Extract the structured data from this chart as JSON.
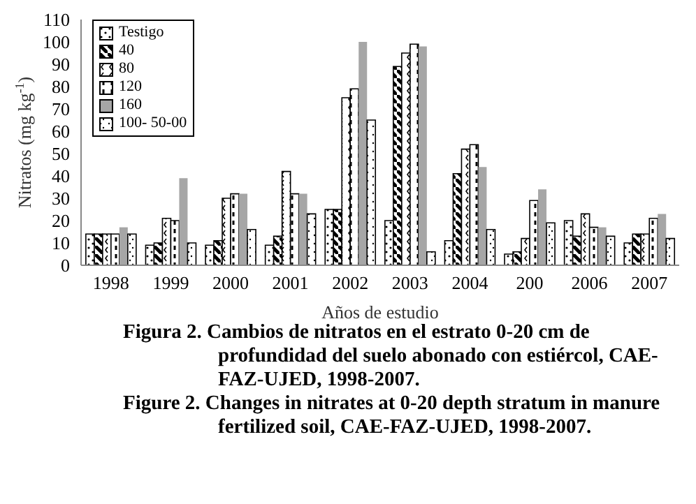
{
  "chart_data": {
    "type": "bar",
    "categories": [
      "1998",
      "1999",
      "2000",
      "2001",
      "2002",
      "2003",
      "2004",
      "200",
      "2006",
      "2007"
    ],
    "xlabel": "Años de estudio",
    "ylabel": "Nitratos (mg kg$^{-1}$)",
    "ylim": [
      0,
      110
    ],
    "yticks": [
      0,
      10,
      20,
      30,
      40,
      50,
      60,
      70,
      80,
      90,
      100,
      110
    ],
    "grid": false,
    "legend": "top left",
    "series": [
      {
        "name": "Testigo",
        "color": "#000000",
        "values": [
          14,
          9,
          9,
          9,
          25,
          20,
          11,
          5,
          20,
          10
        ]
      },
      {
        "name": "40",
        "color": "#000000",
        "values": [
          14,
          10,
          11,
          13,
          25,
          89,
          41,
          6,
          13,
          14
        ]
      },
      {
        "name": "80",
        "color": "#000000",
        "values": [
          14,
          21,
          30,
          42,
          75,
          95,
          52,
          12,
          23,
          14
        ]
      },
      {
        "name": "120",
        "color": "#000000",
        "values": [
          14,
          20,
          32,
          32,
          79,
          99,
          54,
          29,
          17,
          21
        ]
      },
      {
        "name": "160",
        "color": "#a6a6a6",
        "values": [
          17,
          39,
          32,
          32,
          100,
          98,
          44,
          34,
          17,
          23
        ]
      },
      {
        "name": "100- 50-00",
        "color": "#000000",
        "values": [
          14,
          10,
          16,
          23,
          65,
          6,
          16,
          19,
          13,
          12
        ]
      }
    ],
    "annotations": [
      "Figura 2. Cambios de nitratos en el estrato 0-20 cm de profundidad del suelo abonado con estiércol, CAE-FAZ-UJED, 1998-2007.",
      "Figure 2. Changes in nitrates at 0-20 depth stratum in manure fertilized soil, CAE-FAZ-UJED, 1998-2007."
    ]
  }
}
